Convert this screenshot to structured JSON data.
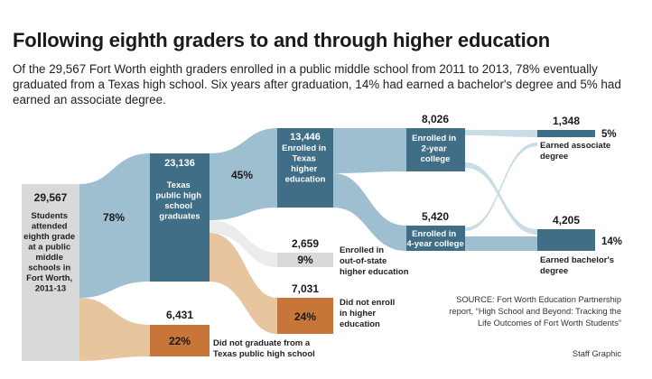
{
  "title": "Following eighth graders to and through higher education",
  "subtitle": "Of the 29,567 Fort Worth eighth graders enrolled in a public middle school from 2011 to 2013, 78% eventually graduated from a Texas high school. Six years after graduation, 14% had earned a bachelor's degree and 5% had earned an associate degree.",
  "colors": {
    "blue": "#3f6e86",
    "blue_flow": "#9dbfcf",
    "orange": "#c8753a",
    "orange_flow": "#e7c59e",
    "gray_node": "#d9d9d9",
    "gray_flow": "#ececec"
  },
  "nodes": {
    "start": {
      "count": "29,567",
      "lines": [
        "Students",
        "attended",
        "eighth grade",
        "at a public",
        "middle",
        "schools in",
        "Fort Worth,",
        "2011-13"
      ]
    },
    "hs_grad": {
      "count": "23,136",
      "lines": [
        "Texas",
        "public high",
        "school",
        "graduates"
      ]
    },
    "enrolled_tx": {
      "count": "13,446",
      "lines": [
        "Enrolled in",
        "Texas",
        "higher",
        "education"
      ]
    },
    "two_year": {
      "count": "8,026",
      "lines": [
        "Enrolled in",
        "2-year",
        "college"
      ]
    },
    "four_year": {
      "count": "5,420",
      "lines": [
        "Enrolled in",
        "4-year college"
      ]
    },
    "associate": {
      "count": "1,348",
      "pct": "5%",
      "lines": [
        "Earned associate",
        "degree"
      ]
    },
    "bachelor": {
      "count": "4,205",
      "pct": "14%",
      "lines": [
        "Earned bachelor's",
        "degree"
      ]
    },
    "out_of_state": {
      "count": "2,659",
      "pct": "9%",
      "lines": [
        "Enrolled in",
        "out-of-state",
        "higher education"
      ]
    },
    "not_enroll": {
      "count": "7,031",
      "pct": "24%",
      "lines": [
        "Did not enroll",
        "in higher",
        "education"
      ]
    },
    "not_grad": {
      "count": "6,431",
      "pct": "22%",
      "lines": [
        "Did not graduate from a",
        "Texas public high school"
      ]
    }
  },
  "flow_labels": {
    "hs_grad_pct": "78%",
    "enrolled_pct": "45%"
  },
  "source": "SOURCE: Fort Worth Education Partnership report, “High School and Beyond: Tracking the Life Outcomes of Fort Worth Students”",
  "credit": "Staff Graphic"
}
